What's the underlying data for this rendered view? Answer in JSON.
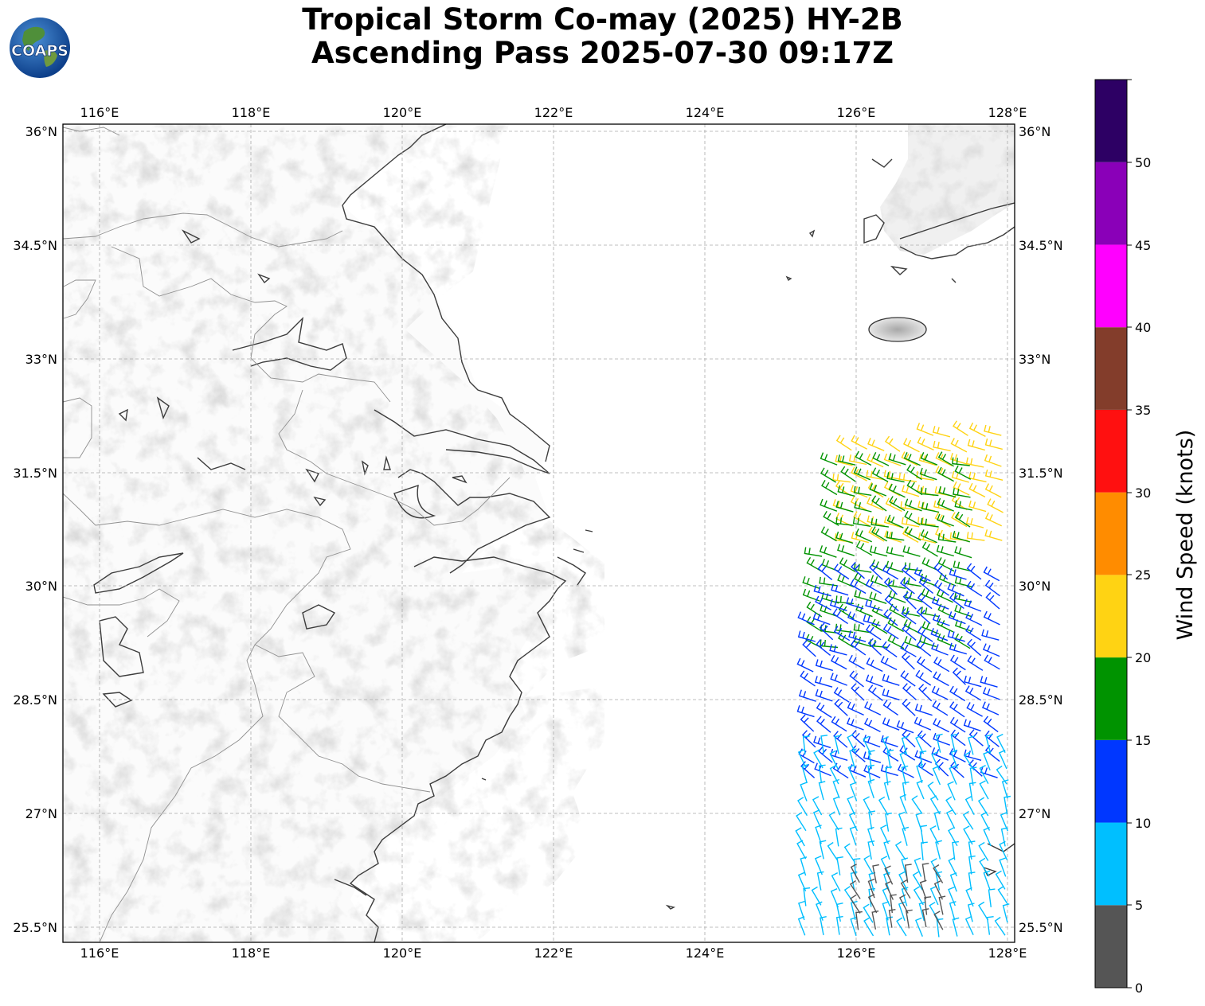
{
  "header": {
    "title_line1": "Tropical Storm Co-may (2025) HY-2B",
    "title_line2": "Ascending Pass 2025-07-30 09:17Z",
    "logo_text": "COAPS"
  },
  "map": {
    "lon_ticks": [
      "116°E",
      "118°E",
      "120°E",
      "122°E",
      "124°E",
      "126°E",
      "128°E"
    ],
    "lat_ticks": [
      "36°N",
      "34.5°N",
      "33°N",
      "31.5°N",
      "30°N",
      "28.5°N",
      "27°N",
      "25.5°N"
    ],
    "lon_values": [
      116,
      118,
      120,
      122,
      124,
      126,
      128
    ],
    "lat_values": [
      36,
      34.5,
      33,
      31.5,
      30,
      28.5,
      27,
      25.5
    ],
    "extent": {
      "lon_min": 115.53,
      "lon_max": 128.05,
      "lat_min": 25.32,
      "lat_max": 36.1
    },
    "grid": true,
    "background": "terrain-grayscale"
  },
  "colorbar": {
    "label": "Wind Speed (knots)",
    "ticks": [
      "0",
      "5",
      "10",
      "15",
      "20",
      "25",
      "30",
      "35",
      "40",
      "45",
      "50"
    ],
    "bins": [
      {
        "min": 0,
        "max": 5,
        "color": "#555555"
      },
      {
        "min": 5,
        "max": 10,
        "color": "#00bfff"
      },
      {
        "min": 10,
        "max": 15,
        "color": "#0037ff"
      },
      {
        "min": 15,
        "max": 20,
        "color": "#009300"
      },
      {
        "min": 20,
        "max": 25,
        "color": "#ffd313"
      },
      {
        "min": 25,
        "max": 30,
        "color": "#ff8c00"
      },
      {
        "min": 30,
        "max": 35,
        "color": "#ff1010"
      },
      {
        "min": 35,
        "max": 40,
        "color": "#833d2b"
      },
      {
        "min": 40,
        "max": 45,
        "color": "#ff00ff"
      },
      {
        "min": 45,
        "max": 50,
        "color": "#8a00b8"
      },
      {
        "min": 50,
        "max": 55,
        "color": "#2d0064"
      }
    ]
  },
  "wind_swath": {
    "type": "wind-barbs",
    "regions": [
      {
        "lon": [
          125.9,
          128.05
        ],
        "lat": [
          30.6,
          32.1
        ],
        "speed_kt": 22
      },
      {
        "lon": [
          125.5,
          127.6
        ],
        "lat": [
          29.2,
          31.6
        ],
        "speed_kt": 17
      },
      {
        "lon": [
          125.2,
          128.05
        ],
        "lat": [
          27.5,
          30.2
        ],
        "speed_kt": 12
      },
      {
        "lon": [
          125.3,
          128.05
        ],
        "lat": [
          25.4,
          27.9
        ],
        "speed_kt": 8
      },
      {
        "lon": [
          126.0,
          127.3
        ],
        "lat": [
          25.5,
          26.2
        ],
        "speed_kt": 3
      }
    ]
  }
}
